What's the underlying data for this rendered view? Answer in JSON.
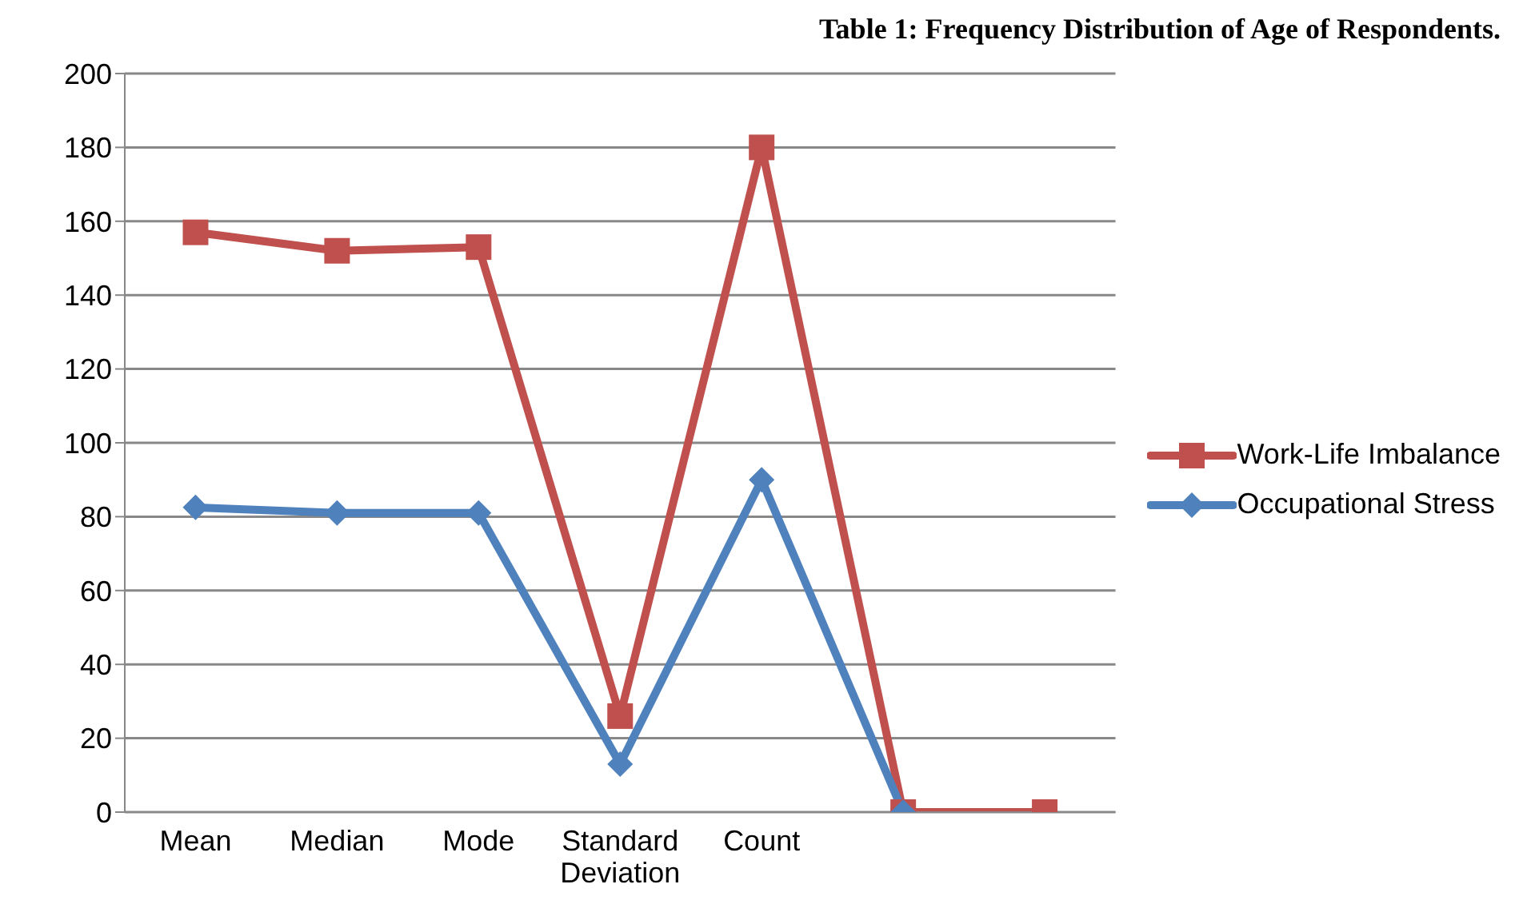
{
  "chart_data": {
    "type": "line",
    "title": "Table 1: Frequency Distribution of Age of Respondents.",
    "categories": [
      "Mean",
      "Median",
      "Mode",
      "Standard Deviation",
      "Count",
      null,
      null
    ],
    "series": [
      {
        "name": "Work-Life Imbalance",
        "color": "#c0504d",
        "marker": "square",
        "values": [
          157,
          152,
          153,
          26,
          180,
          0,
          0
        ]
      },
      {
        "name": "Occupational Stress",
        "color": "#4f81bd",
        "marker": "diamond",
        "values": [
          82.5,
          81,
          81,
          13,
          90,
          0,
          null
        ]
      }
    ],
    "ylim": [
      0,
      200
    ],
    "yticks": [
      0,
      20,
      40,
      60,
      80,
      100,
      120,
      140,
      160,
      180,
      200
    ],
    "grid": "y",
    "legend": "right"
  }
}
